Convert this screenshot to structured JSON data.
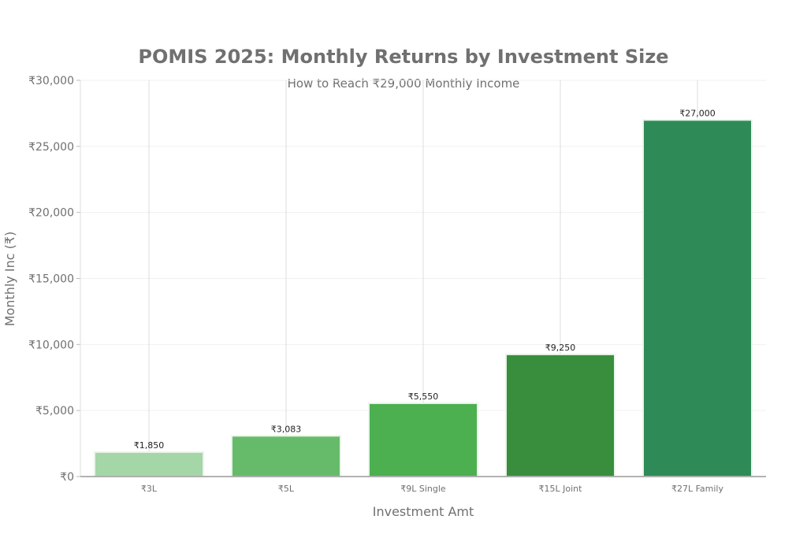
{
  "chart_data": {
    "type": "bar",
    "title": "POMIS 2025: Monthly Returns by Investment Size",
    "subtitle": "How to Reach ₹29,000 Monthly Income",
    "xlabel": "Investment Amt",
    "ylabel": "Monthly Inc (₹)",
    "categories": [
      "₹3L",
      "₹5L",
      "₹9L Single",
      "₹15L Joint",
      "₹27L Family"
    ],
    "values": [
      1850,
      3083,
      5550,
      9250,
      27000
    ],
    "data_labels": [
      "₹1,850",
      "₹3,083",
      "₹5,550",
      "₹9,250",
      "₹27,000"
    ],
    "colors": [
      "#a5d6a7",
      "#66bb6a",
      "#4caf50",
      "#388e3c",
      "#2e8b57"
    ],
    "ylim": [
      0,
      30000
    ],
    "yticks": [
      0,
      5000,
      10000,
      15000,
      20000,
      25000,
      30000
    ],
    "ytick_labels": [
      "₹0",
      "₹5,000",
      "₹10,000",
      "₹15,000",
      "₹20,000",
      "₹25,000",
      "₹30,000"
    ],
    "grid": true,
    "legend": "none"
  }
}
